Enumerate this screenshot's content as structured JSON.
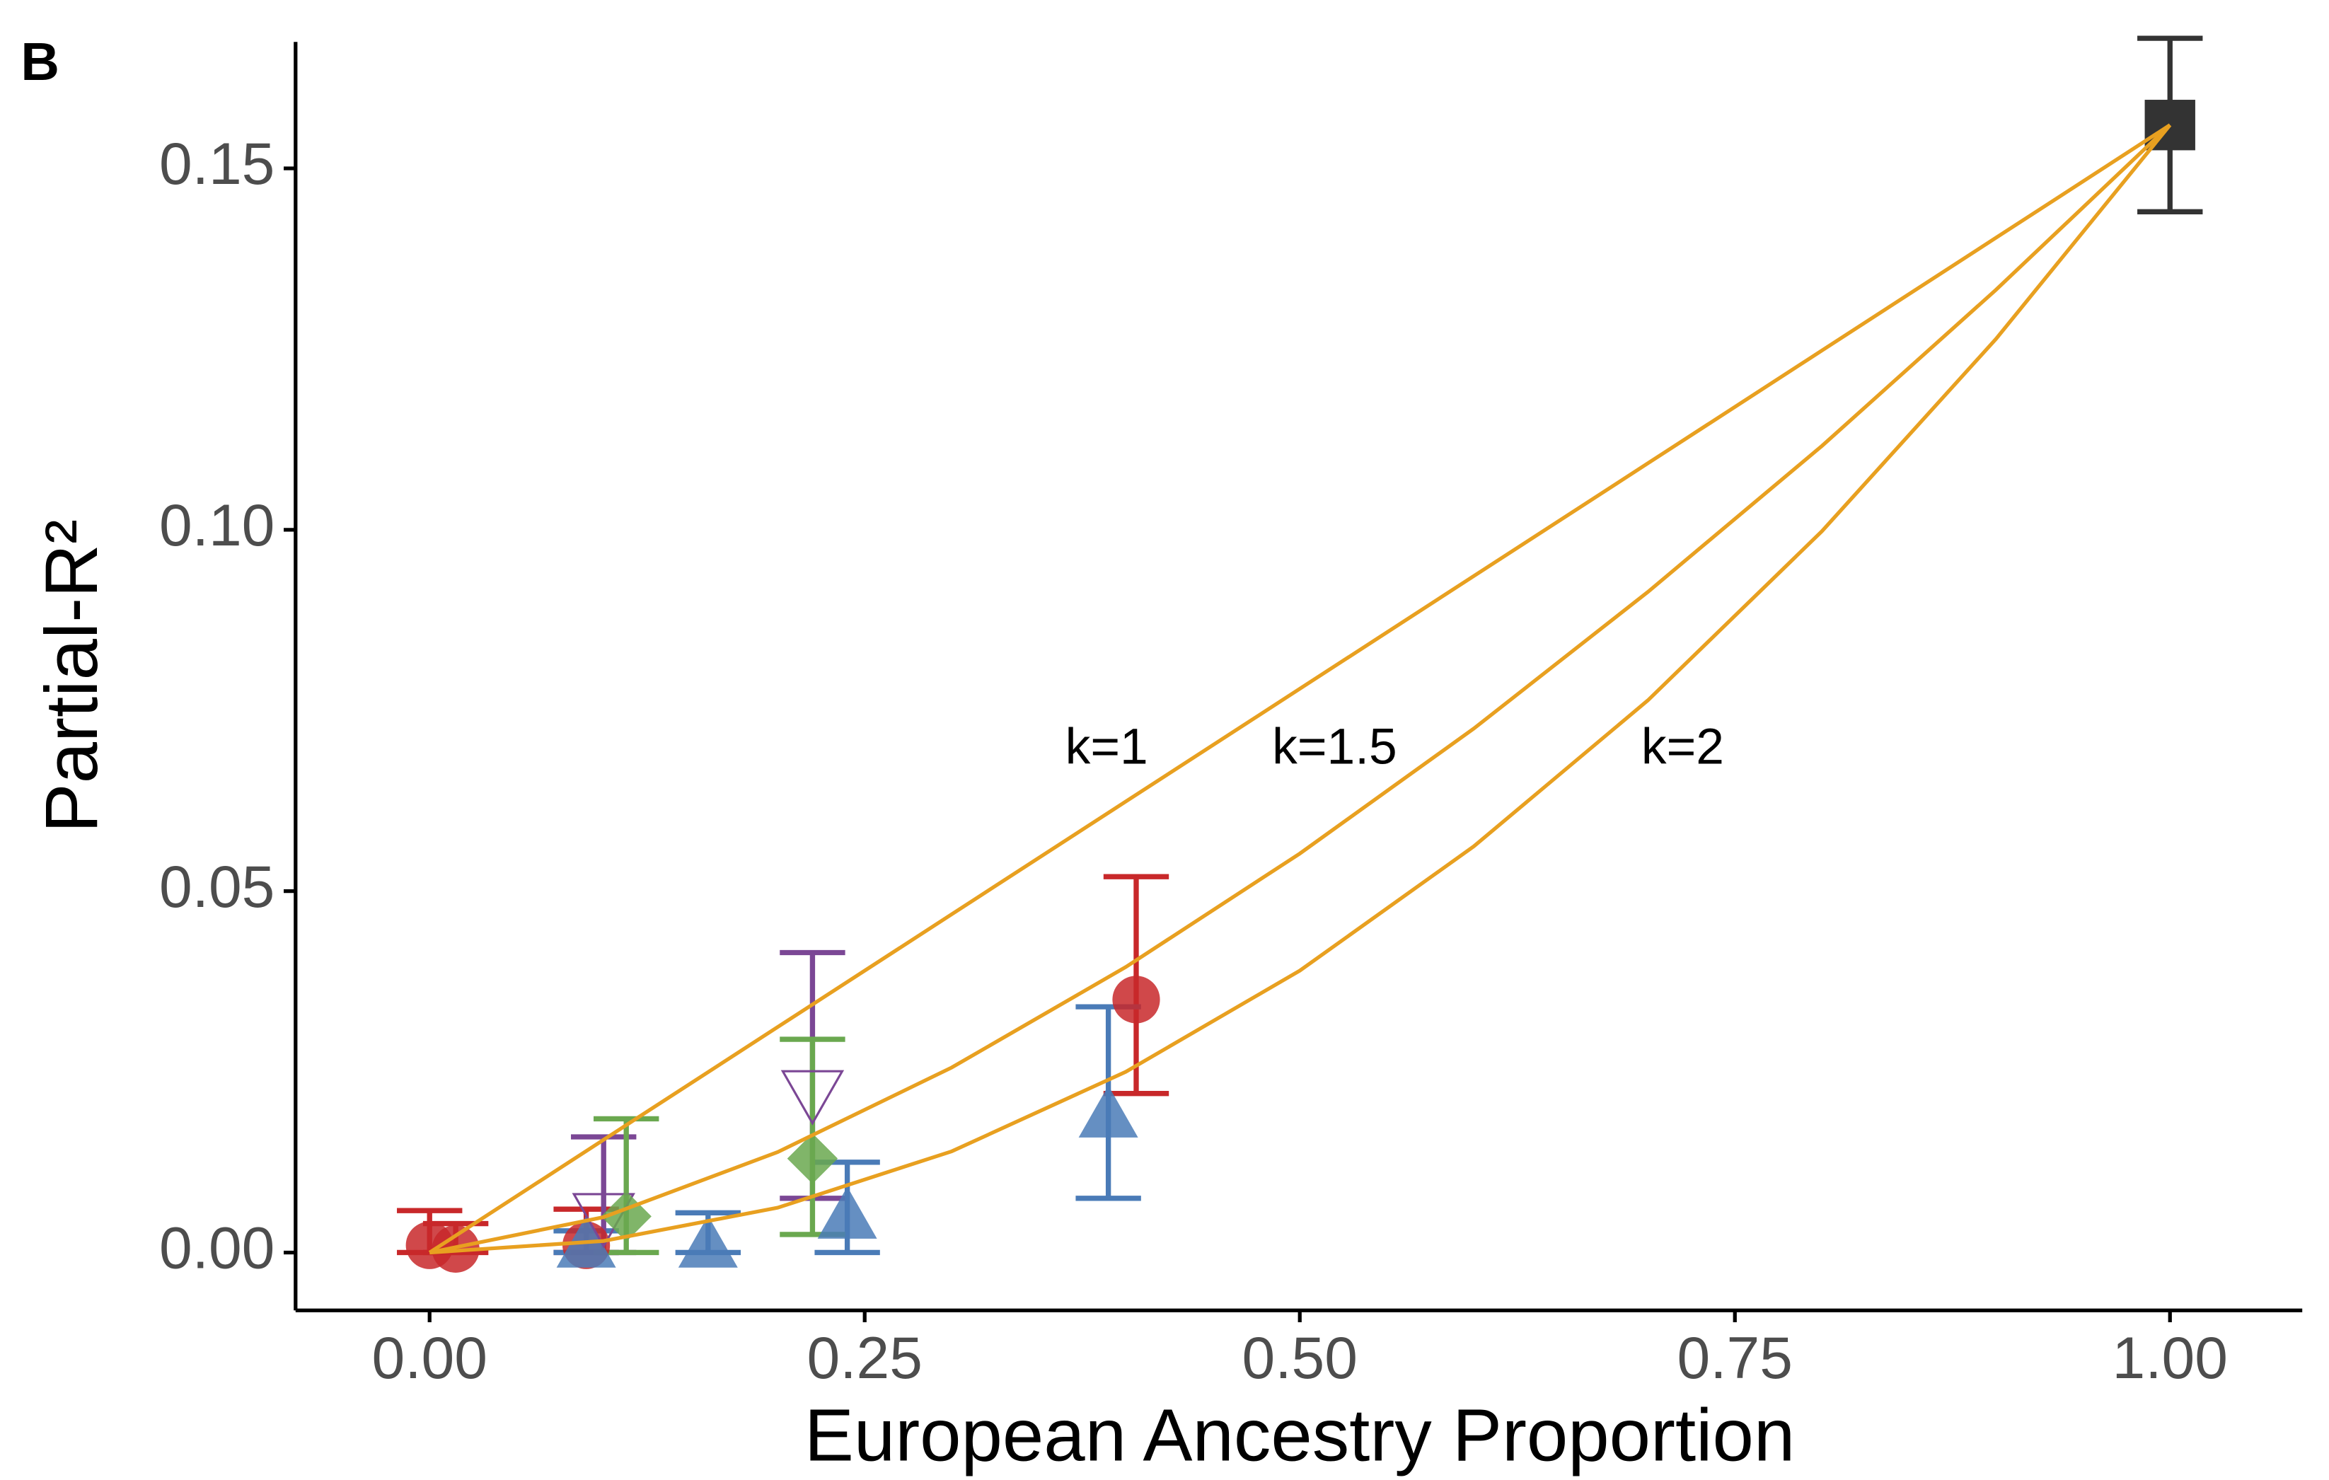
{
  "chart_data": {
    "type": "scatter",
    "panel_label": "B",
    "x_label": "European Ancestry Proportion",
    "y_label": "Partial-R²",
    "xlim": [
      -0.077,
      1.076
    ],
    "ylim": [
      -0.008,
      0.1675
    ],
    "xticks": [
      {
        "value": 0,
        "label": "0.00"
      },
      {
        "value": 0.25,
        "label": "0.25"
      },
      {
        "value": 0.5,
        "label": "0.50"
      },
      {
        "value": 0.75,
        "label": "0.75"
      },
      {
        "value": 1,
        "label": "1.00"
      }
    ],
    "yticks": [
      {
        "value": 0,
        "label": "0.00"
      },
      {
        "value": 0.05,
        "label": "0.05"
      },
      {
        "value": 0.1,
        "label": "0.10"
      },
      {
        "value": 0.15,
        "label": "0.15"
      }
    ],
    "grid": false,
    "series": [
      {
        "color": "#c8282a",
        "marker": "circle",
        "x": [
          0.0,
          0.015,
          0.09,
          0.406
        ],
        "values": [
          0.001,
          0.0005,
          0.001,
          0.035
        ],
        "lower": [
          0,
          0,
          0,
          0.022
        ],
        "upper": [
          0.0058,
          0.004,
          0.006,
          0.052
        ]
      },
      {
        "color": "#4a7bb7",
        "marker": "triangle",
        "x": [
          0.09,
          0.16,
          0.24,
          0.39
        ],
        "values": [
          0.001,
          0.001,
          0.005,
          0.019
        ],
        "lower": [
          0,
          0,
          0,
          0.0075
        ],
        "upper": [
          0.003,
          0.0055,
          0.0125,
          0.034
        ]
      },
      {
        "color": "#7b4795",
        "marker": "triangle-down-open",
        "x": [
          0.1,
          0.22
        ],
        "values": [
          0.005,
          0.022
        ],
        "lower": [
          0,
          0.0075
        ],
        "upper": [
          0.016,
          0.0415
        ]
      },
      {
        "color": "#6aa84f",
        "marker": "diamond",
        "x": [
          0.113,
          0.22
        ],
        "values": [
          0.005,
          0.013
        ],
        "lower": [
          0,
          0.0025
        ],
        "upper": [
          0.0185,
          0.0295
        ]
      },
      {
        "color": "#333333",
        "marker": "square",
        "x": [
          1.0
        ],
        "values": [
          0.156
        ],
        "lower": [
          0.144
        ],
        "upper": [
          0.168
        ]
      }
    ],
    "curves": [
      {
        "label": "k=1",
        "color": "#e8a020",
        "x": [
          0,
          0.1,
          0.2,
          0.3,
          0.4,
          0.5,
          0.6,
          0.7,
          0.8,
          0.9,
          1
        ],
        "y": [
          0,
          0.0156,
          0.0312,
          0.0468,
          0.0624,
          0.078,
          0.0936,
          0.1092,
          0.1248,
          0.1404,
          0.156
        ]
      },
      {
        "label": "k=1.5",
        "color": "#e8a020",
        "x": [
          0,
          0.1,
          0.2,
          0.3,
          0.4,
          0.5,
          0.6,
          0.7,
          0.8,
          0.9,
          1
        ],
        "y": [
          0,
          0.0049,
          0.0139,
          0.0256,
          0.0395,
          0.0552,
          0.0725,
          0.0914,
          0.1116,
          0.1332,
          0.156
        ]
      },
      {
        "label": "k=2",
        "color": "#e8a020",
        "x": [
          0,
          0.1,
          0.2,
          0.3,
          0.4,
          0.5,
          0.6,
          0.7,
          0.8,
          0.9,
          1
        ],
        "y": [
          0,
          0.0016,
          0.0062,
          0.014,
          0.025,
          0.039,
          0.0562,
          0.0764,
          0.0998,
          0.1264,
          0.156
        ]
      }
    ]
  }
}
